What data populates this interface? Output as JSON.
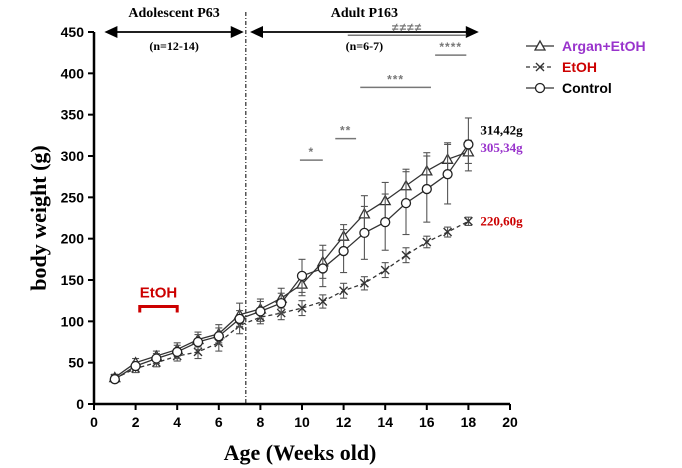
{
  "chart_data": {
    "type": "line",
    "xlabel": "Age (Weeks old)",
    "ylabel": "body weight (g)",
    "xlim": [
      0,
      20
    ],
    "ylim": [
      0,
      450
    ],
    "xticks": [
      0,
      2,
      4,
      6,
      8,
      10,
      12,
      14,
      16,
      18,
      20
    ],
    "yticks": [
      0,
      50,
      100,
      150,
      200,
      250,
      300,
      350,
      400,
      450
    ],
    "legend_position": "top-right",
    "phases": [
      {
        "label": "Adolescent P63",
        "n_label": "(n=12-14)",
        "from": 0.5,
        "to": 7.2
      },
      {
        "label": "Adult P163",
        "n_label": "(n=6-7)",
        "from": 7.5,
        "to": 18.5
      }
    ],
    "divider_x": 7.3,
    "treatment": {
      "label": "EtOH",
      "from": 2.2,
      "to": 4.0,
      "y": 118
    },
    "series": [
      {
        "name": "Argan+EtOH",
        "color": "#9933cc",
        "marker": "triangle",
        "dashed": false,
        "end_label": "305,34g",
        "x": [
          1,
          2,
          3,
          4,
          5,
          6,
          7,
          8,
          9,
          10,
          11,
          12,
          13,
          14,
          15,
          16,
          17,
          18
        ],
        "y": [
          32,
          50,
          58,
          66,
          78,
          85,
          108,
          115,
          128,
          145,
          172,
          203,
          230,
          246,
          264,
          282,
          296,
          305
        ],
        "err": [
          4,
          5,
          6,
          8,
          9,
          11,
          14,
          12,
          12,
          14,
          20,
          14,
          22,
          22,
          20,
          22,
          20,
          14
        ]
      },
      {
        "name": "EtOH",
        "color": "#cc0000",
        "marker": "x",
        "dashed": true,
        "end_label": "220,60g",
        "x": [
          1,
          2,
          3,
          4,
          5,
          6,
          7,
          8,
          9,
          10,
          11,
          12,
          13,
          14,
          15,
          16,
          17,
          18
        ],
        "y": [
          31,
          43,
          50,
          58,
          63,
          74,
          95,
          105,
          110,
          116,
          124,
          137,
          146,
          162,
          180,
          196,
          208,
          221
        ],
        "err": [
          4,
          5,
          5,
          6,
          8,
          10,
          10,
          8,
          8,
          9,
          8,
          9,
          8,
          9,
          9,
          7,
          6,
          5
        ]
      },
      {
        "name": "Control",
        "color": "#000000",
        "marker": "circle",
        "dashed": false,
        "end_label": "314,42g",
        "x": [
          1,
          2,
          3,
          4,
          5,
          6,
          7,
          8,
          9,
          10,
          11,
          12,
          13,
          14,
          15,
          16,
          17,
          18
        ],
        "y": [
          30,
          46,
          55,
          63,
          75,
          82,
          103,
          112,
          122,
          155,
          164,
          185,
          207,
          220,
          243,
          260,
          278,
          314
        ],
        "err": [
          4,
          5,
          6,
          8,
          9,
          10,
          10,
          12,
          12,
          20,
          22,
          26,
          32,
          34,
          38,
          40,
          36,
          32
        ]
      }
    ],
    "significance": [
      {
        "label": "*",
        "x1": 9.9,
        "x2": 11.0,
        "y": 295
      },
      {
        "label": "**",
        "x1": 11.6,
        "x2": 12.6,
        "y": 321
      },
      {
        "label": "***",
        "x1": 12.8,
        "x2": 16.2,
        "y": 383
      },
      {
        "label": "****",
        "x1": 16.4,
        "x2": 17.9,
        "y": 422
      },
      {
        "label": "≠≠≠≠",
        "x1": 12.2,
        "x2": 17.9,
        "y": 446
      }
    ]
  }
}
